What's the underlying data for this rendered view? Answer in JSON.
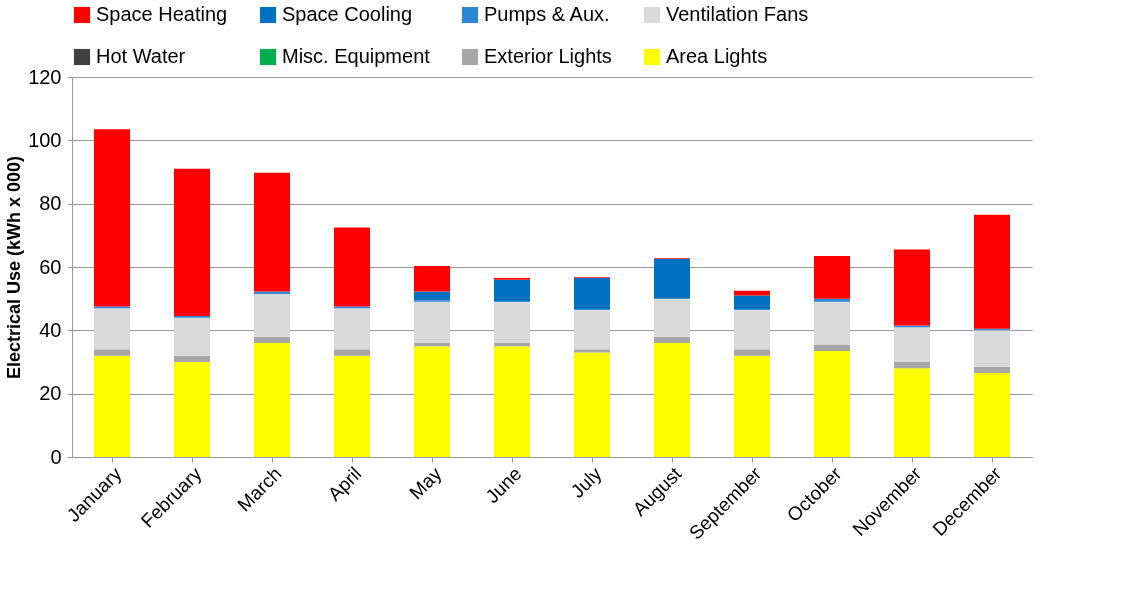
{
  "chart_data": {
    "type": "bar",
    "stacked": true,
    "ylabel": "Electrical Use (kWh x 000)",
    "ylim": [
      0,
      120
    ],
    "yticks": [
      0,
      20,
      40,
      60,
      80,
      100,
      120
    ],
    "grid": "y",
    "legend": "top",
    "categories": [
      "January",
      "February",
      "March",
      "April",
      "May",
      "June",
      "July",
      "August",
      "September",
      "October",
      "November",
      "December"
    ],
    "series": [
      {
        "name": "Area Lights",
        "color": "#ffff00",
        "values": [
          32,
          30,
          36,
          32,
          35,
          35,
          33,
          36,
          32,
          33.5,
          28,
          26.5
        ]
      },
      {
        "name": "Exterior Lights",
        "color": "#a6a6a6",
        "values": [
          2,
          2,
          2,
          2,
          1,
          1,
          1,
          2,
          2,
          2,
          2,
          2
        ]
      },
      {
        "name": "Misc. Equipment",
        "color": "#00b050",
        "values": [
          0,
          0,
          0,
          0,
          0,
          0,
          0,
          0,
          0,
          0,
          0,
          0
        ]
      },
      {
        "name": "Hot Water",
        "color": "#404040",
        "values": [
          0,
          0,
          0,
          0,
          0,
          0,
          0,
          0,
          0,
          0,
          0,
          0
        ]
      },
      {
        "name": "Ventilation Fans",
        "color": "#d9d9d9",
        "values": [
          13,
          12,
          13.5,
          13,
          13,
          13,
          12.5,
          12,
          12.5,
          13.5,
          11,
          11.5
        ]
      },
      {
        "name": "Pumps & Aux.",
        "color": "#2e86d6",
        "values": [
          0.5,
          0.5,
          0.8,
          0.5,
          0.5,
          0,
          0,
          0,
          0,
          1,
          0.5,
          0.5
        ]
      },
      {
        "name": "Space Cooling",
        "color": "#0070c0",
        "values": [
          0,
          0,
          0,
          0,
          2.8,
          7,
          10,
          12.5,
          4.5,
          0,
          0,
          0
        ]
      },
      {
        "name": "Space Heating",
        "color": "#ff0000",
        "values": [
          56,
          46.5,
          37.5,
          25,
          8,
          0.5,
          0.3,
          0.3,
          1.5,
          13.5,
          24,
          36
        ]
      }
    ]
  }
}
